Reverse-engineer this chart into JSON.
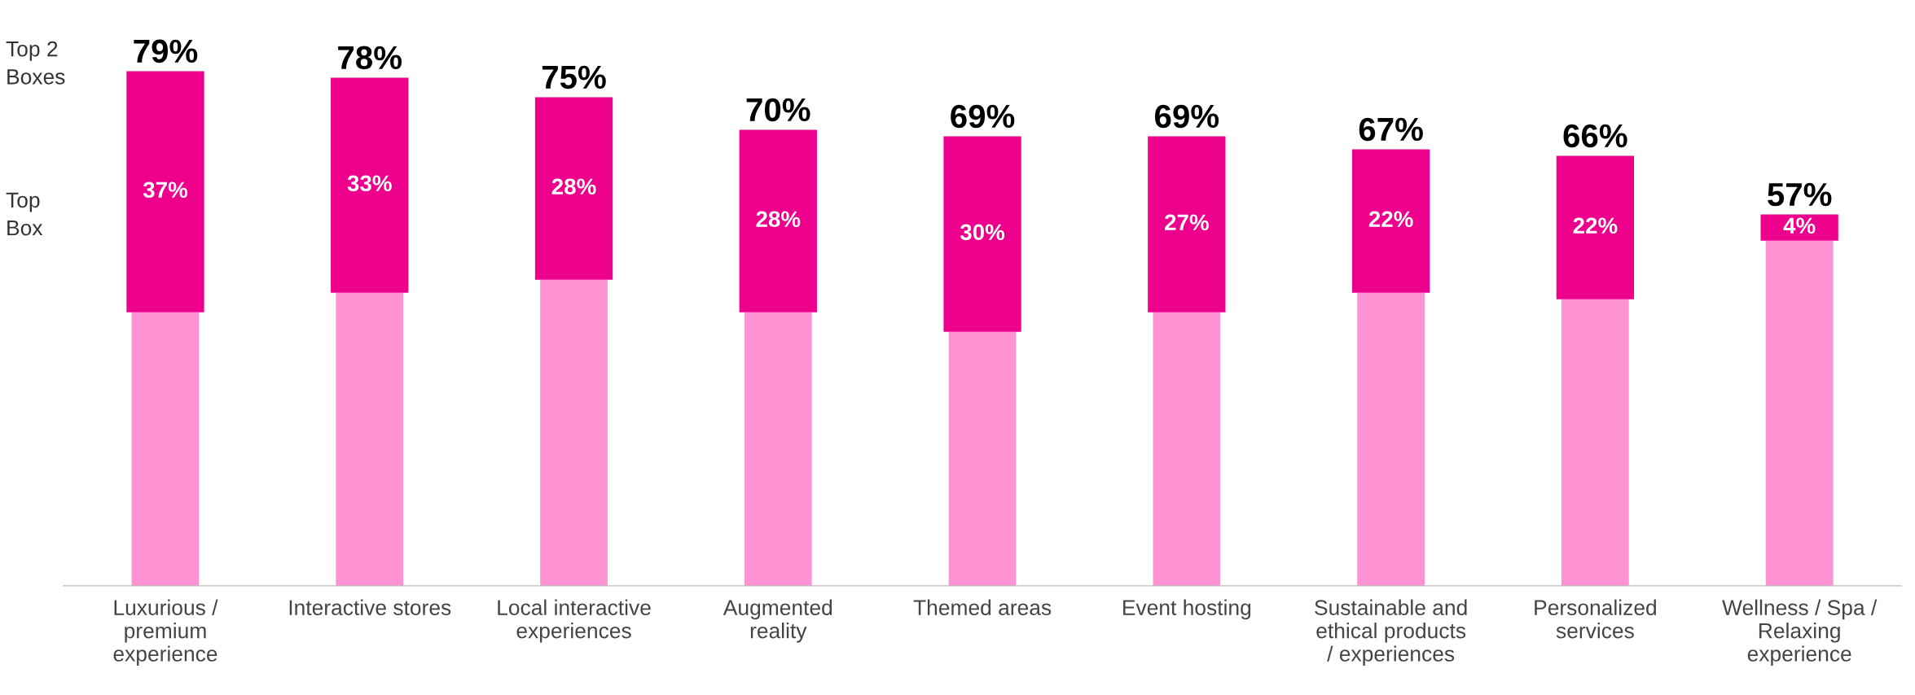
{
  "chart_data": {
    "type": "bar",
    "stacked": true,
    "categories": [
      "Luxurious /\npremium\nexperience",
      "Interactive stores",
      "Local interactive\nexperiences",
      "Augmented\nreality",
      "Themed areas",
      "Event hosting",
      "Sustainable and\nethical products\n/ experiences",
      "Personalized\nservices",
      "Wellness / Spa /\nRelaxing\nexperience"
    ],
    "series": [
      {
        "color": "#ff92d2",
        "values": [
          42,
          45,
          47,
          42,
          39,
          42,
          45,
          44,
          53
        ]
      },
      {
        "color": "#ec008c",
        "values": [
          37,
          33,
          28,
          28,
          30,
          27,
          22,
          22,
          4
        ],
        "value_labels": [
          "37%",
          "33%",
          "28%",
          "28%",
          "30%",
          "27%",
          "22%",
          "22%",
          "4%"
        ]
      }
    ],
    "totals": [
      "79%",
      "78%",
      "75%",
      "70%",
      "69%",
      "69%",
      "67%",
      "66%",
      "57%"
    ],
    "annotations": [
      "Top 2\nBoxes",
      "Top\nBox"
    ],
    "tick_labels": "x",
    "grid": false,
    "legend": false
  }
}
